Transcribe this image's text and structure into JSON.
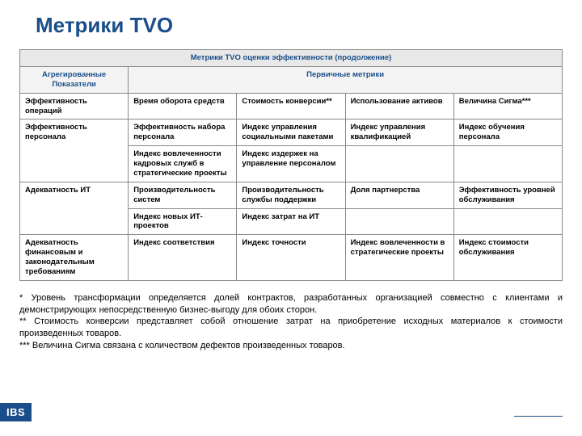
{
  "colors": {
    "accent": "#1a4e8a",
    "header_bg": "#e8e8e8",
    "sub_bg": "#f3f3f3",
    "border": "#888888",
    "text": "#000000",
    "bg": "#ffffff"
  },
  "typography": {
    "title_fontsize": 26,
    "cell_fontsize": 9.5,
    "notes_fontsize": 11,
    "font_family": "Arial"
  },
  "title": "Метрики TVO",
  "table": {
    "type": "table",
    "caption": "Метрики TVO оценки эффективности (продолжение)",
    "col_header_left": "Агрегированные Показатели",
    "col_header_right": "Первичные метрики",
    "column_count": 5,
    "column_widths_pct": [
      20,
      20,
      20,
      20,
      20
    ],
    "rows": [
      {
        "label": "Эффективность операций",
        "metrics": [
          "Время оборота средств",
          "Стоимость конверсии**",
          "Использование активов",
          "Величина Сигма***"
        ]
      },
      {
        "label": "Эффективность персонала",
        "metrics": [
          "Эффективность набора персонала",
          "Индекс управления социальными пакетами",
          "Индекс управления квалификацией",
          "Индекс обучения персонала"
        ]
      },
      {
        "label": "",
        "metrics": [
          "Индекс вовлеченности кадровых служб в стратегические проекты",
          "Индекс издержек на управление персоналом",
          "",
          ""
        ]
      },
      {
        "label": "Адекватность ИТ",
        "metrics": [
          "Производительность систем",
          "Производительность службы поддержки",
          "Доля партнерства",
          "Эффективность уровней обслуживания"
        ]
      },
      {
        "label": "",
        "metrics": [
          "Индекс новых ИТ-проектов",
          "Индекс затрат на ИТ",
          "",
          ""
        ]
      },
      {
        "label": "Адекватность финансовым и законодательным требованиям",
        "metrics": [
          "Индекс соответствия",
          "Индекс точности",
          "Индекс вовлеченности в стратегические проекты",
          "Индекс стоимости обслуживания"
        ]
      }
    ]
  },
  "notes": {
    "n1": "* Уровень трансформации определяется долей контрактов, разработанных организацией совместно с клиентами и демонстрирующих непосредственную бизнес-выгоду для обоих сторон.",
    "n2": "** Стоимость конверсии представляет собой отношение затрат на приобретение исходных материалов к стоимости произведенных товаров.",
    "n3": "*** Величина Сигма связана с количеством дефектов произведенных товаров."
  },
  "logo_text": "IBS"
}
